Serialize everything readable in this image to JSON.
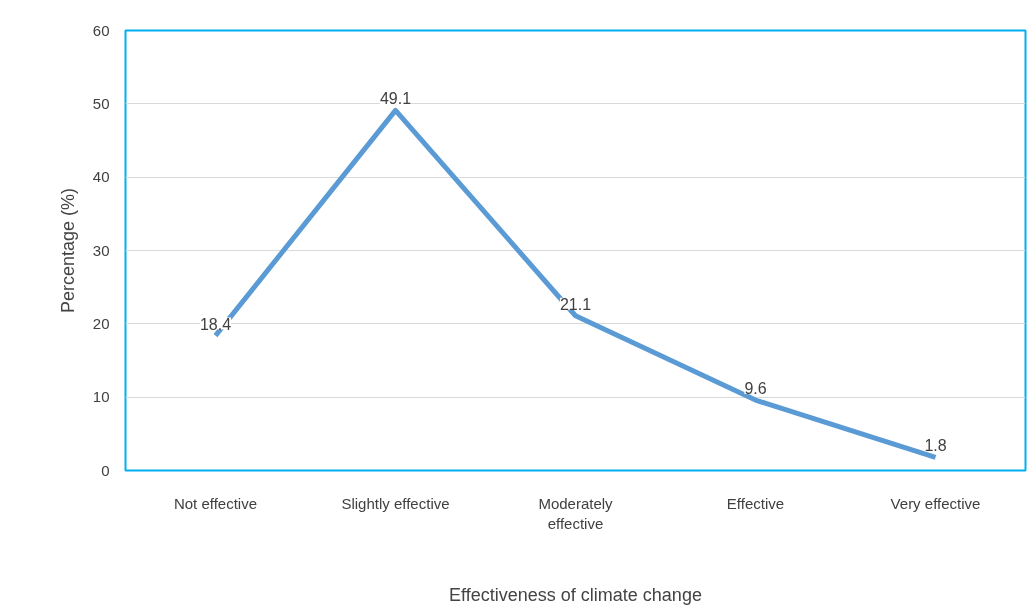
{
  "chart_data": {
    "type": "line",
    "xlabel": "Effectiveness of climate change",
    "ylabel": "Percentage (%)",
    "categories": [
      "Not effective",
      "Slightly effective",
      "Moderately effective",
      "Effective",
      "Very effective"
    ],
    "series": [
      {
        "color": "#5b9bd5",
        "values": [
          18.4,
          49.1,
          21.1,
          9.6,
          1.8
        ]
      }
    ],
    "ylim": [
      0,
      60
    ],
    "yticks": [
      0,
      10,
      20,
      30,
      40,
      50,
      60
    ],
    "grid": "y",
    "data_labels": true,
    "line_style": "solid"
  }
}
